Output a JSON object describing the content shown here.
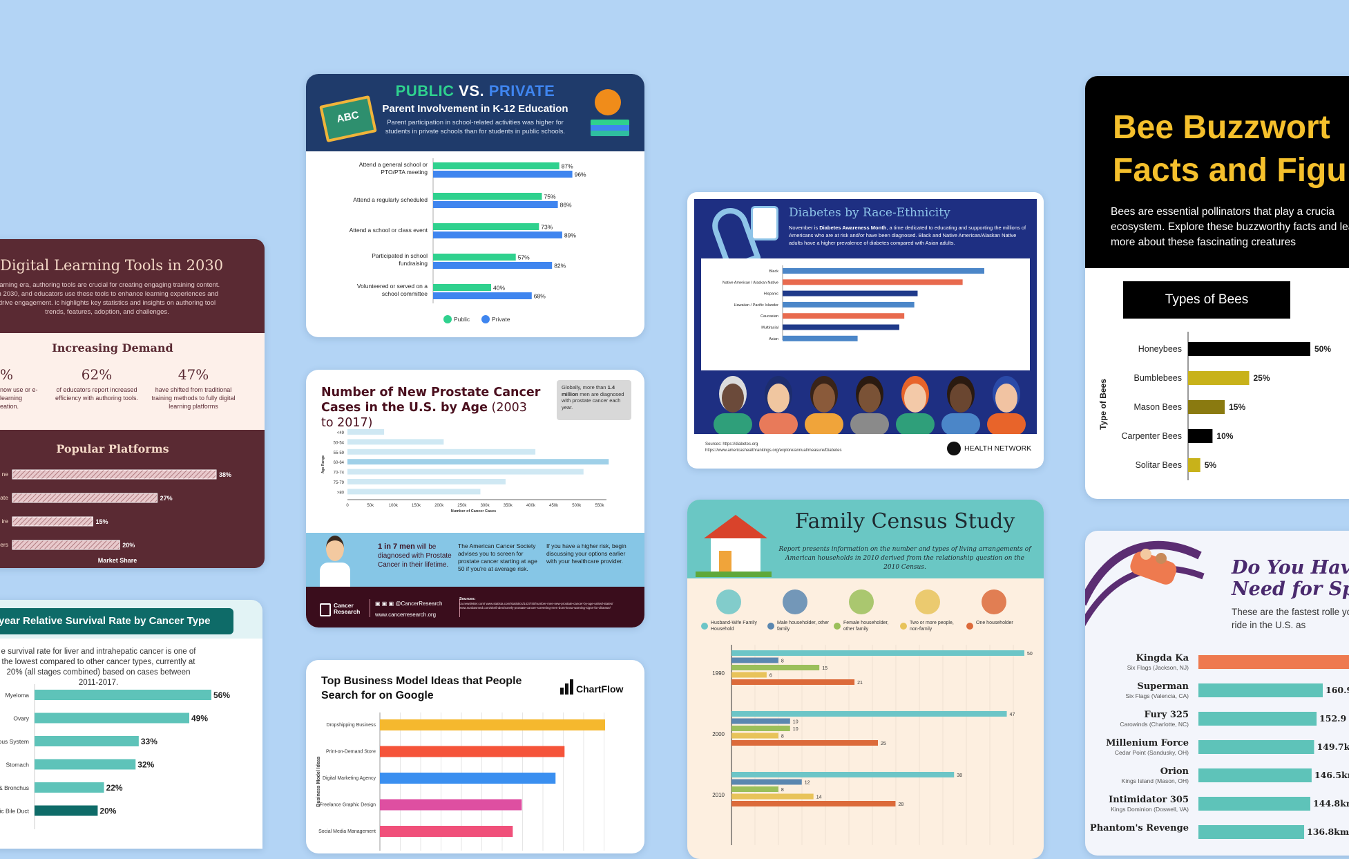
{
  "cards": {
    "digital_learning": {
      "title": "Digital Learning Tools in 2030",
      "intro": "learning era, authoring tools are crucial for creating engaging training content. In 2030, and educators use these tools to enhance learning experiences and drive engagement. ic highlights key statistics and insights on authoring tool trends, features, adoption, and challenges.",
      "section1": "Increasing Demand",
      "stats": [
        {
          "value": "%",
          "text": "now use or e-learning eation."
        },
        {
          "value": "62%",
          "text": "of educators report increased efficiency with authoring tools."
        },
        {
          "value": "47%",
          "text": "have shifted from traditional training methods to fully digital learning platforms"
        }
      ],
      "section2": "Popular Platforms",
      "xlabel": "Market Share"
    },
    "survival": {
      "title": "year Relative Survival Rate by Cancer Type",
      "desc": "e survival rate for liver and intrahepatic cancer is one of the lowest compared to other cancer types, currently at 20% (all stages combined) based on cases between 2011-2017."
    },
    "public_private": {
      "title_a": "PUBLIC",
      "title_vs": "VS.",
      "title_b": "PRIVATE",
      "subtitle": "Parent Involvement in K-12 Education",
      "desc": "Parent participation in school-related activities was higher for students in private schools than for students in public schools.",
      "badge": "ABC"
    },
    "prostate": {
      "title_a": "Number of New Prostate Cancer Cases in the U.S. by Age",
      "title_b": "(2003 to 2017)",
      "note_a": "Globally, more than",
      "note_b": "1.4 million",
      "note_c": "men are diagnosed with prostate cancer each year.",
      "fact_a": "1 in 7 men",
      "fact_b": "will be diagnosed with Prostate Cancer in their lifetime.",
      "acs": "The American Cancer Society advises you to screen for prostate cancer starting at age 50 if you're at average risk.",
      "risk": "If you have a higher risk, begin discussing your options earlier with your healthcare provider.",
      "brand": "Cancer Research",
      "handle": "@CancerResearch",
      "site": "www.cancerresearch.org",
      "sources_label": "Sources:",
      "sources": "ca.newsletter.com/ www.statista.com/statistics/1437/40/number-men-new-prostate-cancer-by-age-united-states/ www.sunbasmed.com/site/index/sonely-prostate-cancer-screening-men-dont-know-warning-signs-for-disease/"
    },
    "business": {
      "title": "Top Business Model Ideas that People Search for on Google",
      "brand": "ChartFlow"
    },
    "diabetes": {
      "title": "Diabetes by Race-Ethnicity",
      "desc_a": "November is ",
      "desc_b": "Diabetes Awareness Month",
      "desc_c": ", a time dedicated to educating and supporting the millions of Americans who are at risk and/or have been diagnosed. Black and Native American/Alaskan Native adults have a higher prevalence of diabetes compared with Asian adults.",
      "source1": "Sources: https://diabetes.org",
      "source2": "https://www.americashealthrankings.org/explore/annual/measure/Diabetes",
      "brand": "HEALTH NETWORK"
    },
    "family": {
      "title": "Family Census Study",
      "desc": "Report presents information on the number and types of living arrangements of American households in 2010 derived from the relationship question on the 2010 Census."
    },
    "bees": {
      "title_a": "Bee Buzzwort",
      "title_b": "Facts and Figu",
      "desc": "Bees are essential pollinators that play a crucia ecosystem. Explore these buzzworthy facts and learn more about these fascinating creatures",
      "section": "Types of Bees"
    },
    "coaster": {
      "title_a": "Do You Hav",
      "title_b": "Need for Sp",
      "desc": "These are the fastest rolle you can ride in the U.S. as"
    }
  },
  "chart_data": [
    {
      "id": "platforms",
      "type": "bar",
      "orientation": "horizontal",
      "categories": [
        "ne",
        "ate",
        "ire",
        "ers"
      ],
      "values": [
        38,
        27,
        15,
        20
      ],
      "value_labels": [
        "38%",
        "27%",
        "15%",
        "20%"
      ],
      "xlabel": "Market Share",
      "colors": {
        "bar": "#e8c9cc",
        "hatch": "#b07b80"
      }
    },
    {
      "id": "survival",
      "type": "bar",
      "orientation": "horizontal",
      "categories": [
        "Myeloma",
        "Ovary",
        "ous System",
        "Stomach",
        "& Bronchus",
        "tic Bile Duct"
      ],
      "values": [
        56,
        49,
        33,
        32,
        22,
        20
      ],
      "value_labels": [
        "56%",
        "49%",
        "33%",
        "32%",
        "22%",
        "20%"
      ],
      "colors": {
        "bar": "#5ec3b9",
        "highlight": "#0e6b68"
      }
    },
    {
      "id": "public_private",
      "type": "bar",
      "orientation": "horizontal",
      "categories": [
        "Attend a general school or PTO/PTA meeting",
        "Attend a regularly scheduled",
        "Attend a school or class event",
        "Participated in school fundraising",
        "Volunteered or served on a school committee"
      ],
      "series": [
        {
          "name": "Public",
          "values": [
            87,
            75,
            73,
            57,
            40
          ],
          "color": "#2fd18e"
        },
        {
          "name": "Private",
          "values": [
            96,
            86,
            89,
            82,
            68
          ],
          "color": "#3f85ef"
        }
      ],
      "legend": "bottom"
    },
    {
      "id": "prostate",
      "type": "bar",
      "orientation": "horizontal",
      "categories": [
        "<49",
        "50-54",
        "55-59",
        "60-64",
        "70-74",
        "75-79",
        ">80"
      ],
      "values": [
        80000,
        210000,
        410000,
        570000,
        515000,
        345000,
        290000
      ],
      "ticks": [
        "0",
        "50k",
        "100k",
        "150k",
        "200k",
        "250k",
        "300k",
        "350k",
        "400k",
        "450k",
        "500k",
        "550k"
      ],
      "xlim": [
        0,
        550000
      ],
      "xlabel": "Number of Cancer Cases",
      "ylabel": "Age Range",
      "colors": {
        "bar": "#cfe8f3",
        "highlight": "#9fd0e8"
      }
    },
    {
      "id": "business",
      "type": "bar",
      "orientation": "horizontal",
      "categories": [
        "Dropshipping Business",
        "Print-on-Demand Store",
        "Digital Marketing Agency",
        "Freelance Graphic Design",
        "Social Media Management"
      ],
      "values": [
        100,
        82,
        78,
        63,
        59
      ],
      "ylabel": "Business Model Ideas",
      "colors": [
        "#f5b82e",
        "#f5543a",
        "#3a8ff0",
        "#de4fa1",
        "#f0507a"
      ]
    },
    {
      "id": "diabetes",
      "type": "bar",
      "orientation": "horizontal",
      "categories": [
        "Black",
        "Native American / Alaskan Native",
        "Hispanic",
        "Hawaiian / Pacific Islander",
        "Caucasian",
        "Multiracial",
        "Asian"
      ],
      "values": [
        12.1,
        10.8,
        8.1,
        7.9,
        7.3,
        7.0,
        4.5
      ],
      "colors": [
        "#4b86c8",
        "#e86a4e",
        "#1f3a8a",
        "#4b86c8",
        "#e86a4e",
        "#1f3a8a",
        "#4b86c8"
      ]
    },
    {
      "id": "family",
      "type": "bar",
      "orientation": "horizontal",
      "categories": [
        "1990",
        "2000",
        "2010"
      ],
      "series": [
        {
          "name": "Husband-Wife Family Household",
          "values": [
            50,
            47,
            38
          ],
          "color": "#6cc5c7"
        },
        {
          "name": "Male householder, other family",
          "values": [
            8,
            10,
            12
          ],
          "color": "#5a87b0"
        },
        {
          "name": "Female householder, other family",
          "values": [
            15,
            10,
            8
          ],
          "color": "#9bbf5a"
        },
        {
          "name": "Two or more people, non-family",
          "values": [
            6,
            8,
            14
          ],
          "color": "#e8c35a"
        },
        {
          "name": "One householder",
          "values": [
            21,
            25,
            28
          ],
          "color": "#dc6a3a"
        }
      ],
      "legend": "top"
    },
    {
      "id": "bees",
      "type": "bar",
      "orientation": "horizontal",
      "categories": [
        "Honeybees",
        "Bumblebees",
        "Mason Bees",
        "Carpenter Bees",
        "Solitar Bees"
      ],
      "values": [
        50,
        25,
        15,
        10,
        5
      ],
      "value_labels": [
        "50%",
        "25%",
        "15%",
        "10%",
        "5%"
      ],
      "ylabel": "Type of Bees",
      "colors": [
        "#000000",
        "#c8b21a",
        "#8a7a10",
        "#000000",
        "#c8b21a"
      ]
    },
    {
      "id": "coasters",
      "type": "bar",
      "orientation": "horizontal",
      "categories": [
        "Kingda Ka",
        "Superman",
        "Fury 325",
        "Millenium Force",
        "Orion",
        "Intimidator 305",
        "Phantom's Revenge"
      ],
      "subtitles": [
        "Six Flags (Jackson, NJ)",
        "Six Flags (Valencia, CA)",
        "Carowinds (Charlotte, NC)",
        "Cedar Point (Sandusky, OH)",
        "Kings Island (Mason, OH)",
        "Kings Dominion (Doswell, VA)",
        ""
      ],
      "values": [
        206,
        160.9,
        152.9,
        149.7,
        146.5,
        144.8,
        136.8
      ],
      "value_labels": [
        "",
        "160.9",
        "152.9",
        "149.7km",
        "146.5km",
        "144.8km",
        "136.8km"
      ],
      "colors": {
        "bar": "#5ec3b9",
        "highlight": "#ee7a4f"
      }
    }
  ]
}
